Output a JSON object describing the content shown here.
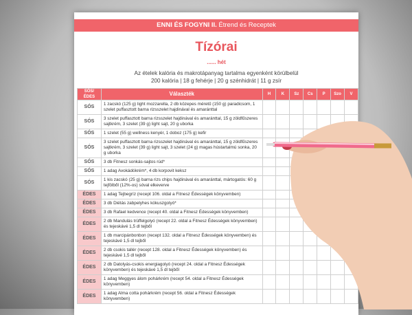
{
  "header": {
    "brand": "ENNI ÉS FOGYNI",
    "part": "II.",
    "subtitle": "Étrend és Receptek"
  },
  "title": "Tízórai",
  "week": "...... hét",
  "info": {
    "line1": "Az ételek kalória és makrotápanyag tartalma egyenként körülbelül",
    "line2": "200 kalória | 18 g fehérje | 20 g szénhidrát | 11 g zsír"
  },
  "table": {
    "headers": {
      "type": "SÓS/ ÉDES",
      "choice": "Választék",
      "days": [
        "H",
        "K",
        "Sz",
        "Cs",
        "P",
        "Szo",
        "V"
      ]
    },
    "rows": [
      {
        "type": "SÓS",
        "text": "1 zacskó (125 g) light mozzarella, 2 db közepes méretű (150 g) paradicsom, 1 szelet puffasztott barna rizsszelet hajdinával és amaránttal"
      },
      {
        "type": "SÓS",
        "text": "3 szelet puffasztott barna rizsszelet hajdinával és amaránttal, 15 g zöldfűszeres sajtkrém, 3 szelet (39 g) light sajt, 20 g uborka"
      },
      {
        "type": "SÓS",
        "text": "1 szelet (55 g) wellness kenyér, 1 doboz (175 g) kefir"
      },
      {
        "type": "SÓS",
        "text": "3 szelet puffasztott barna rizsszelet hajdinával és amaránttal, 15 g zöldfűszeres sajtkrém, 3 szelet (39 g) light sajt, 3 szelet (24 g) magas hústartalmú sonka, 20 g uborka"
      },
      {
        "type": "SÓS",
        "text": "3 db Fitnesz sonkás-sajtos rúd*"
      },
      {
        "type": "SÓS",
        "text": "1 adag Avokádókrém*, 4 db korpovit keksz"
      },
      {
        "type": "SÓS",
        "text": "1 kis zacskó (25 g) barna rizs chips hajdinával és amaránttal, mártogatós: 60 g tejfölből (12%-os) sóval elkeverve"
      },
      {
        "type": "ÉDES",
        "text": "1 adag Tejbegríz (recept 106. oldal a Fitnesz Édességek könyvemben)"
      },
      {
        "type": "ÉDES",
        "text": "3 db Diétás zabpelyhes kókuszgolyó*"
      },
      {
        "type": "ÉDES",
        "text": "3 db Rafael kedvence (recept 40. oldal a Fitnesz Édességek könyvemben)"
      },
      {
        "type": "ÉDES",
        "text": "2 db Mandulás trüffelgolyó (recept 22. oldal a Fitnesz Édességek könyvemben) és tejeskávé 1,5 dl tejből"
      },
      {
        "type": "ÉDES",
        "text": "1 db marcipánbonbon (recept 132. oldal a Fitnesz Édességek könyvemben) és tejeskávé 1,5 dl tejből"
      },
      {
        "type": "ÉDES",
        "text": "2 db csokis tallér (recept 128. oldal a Fitnesz Édességek könyvemben) és tejeskávé 1,5 dl tejből"
      },
      {
        "type": "ÉDES",
        "text": "2 db Datolyás-csokis energiagolyó (recept 24. oldal a Fitnesz Édességek könyvemben) és tejeskávé 1,5 dl tejből"
      },
      {
        "type": "ÉDES",
        "text": "1 adag Meggyes álom pohárkrém (recept 54. oldal a Fitnesz Édességek könyvemben)"
      },
      {
        "type": "ÉDES",
        "text": "1 adag Alma cotta pohárkrém (recept 56. oldal a Fitnesz Édességek könyvemben)"
      }
    ]
  },
  "colors": {
    "accent": "#f0646a",
    "sweet_cell": "#f8c9cb",
    "pen": "#f06a8c"
  }
}
